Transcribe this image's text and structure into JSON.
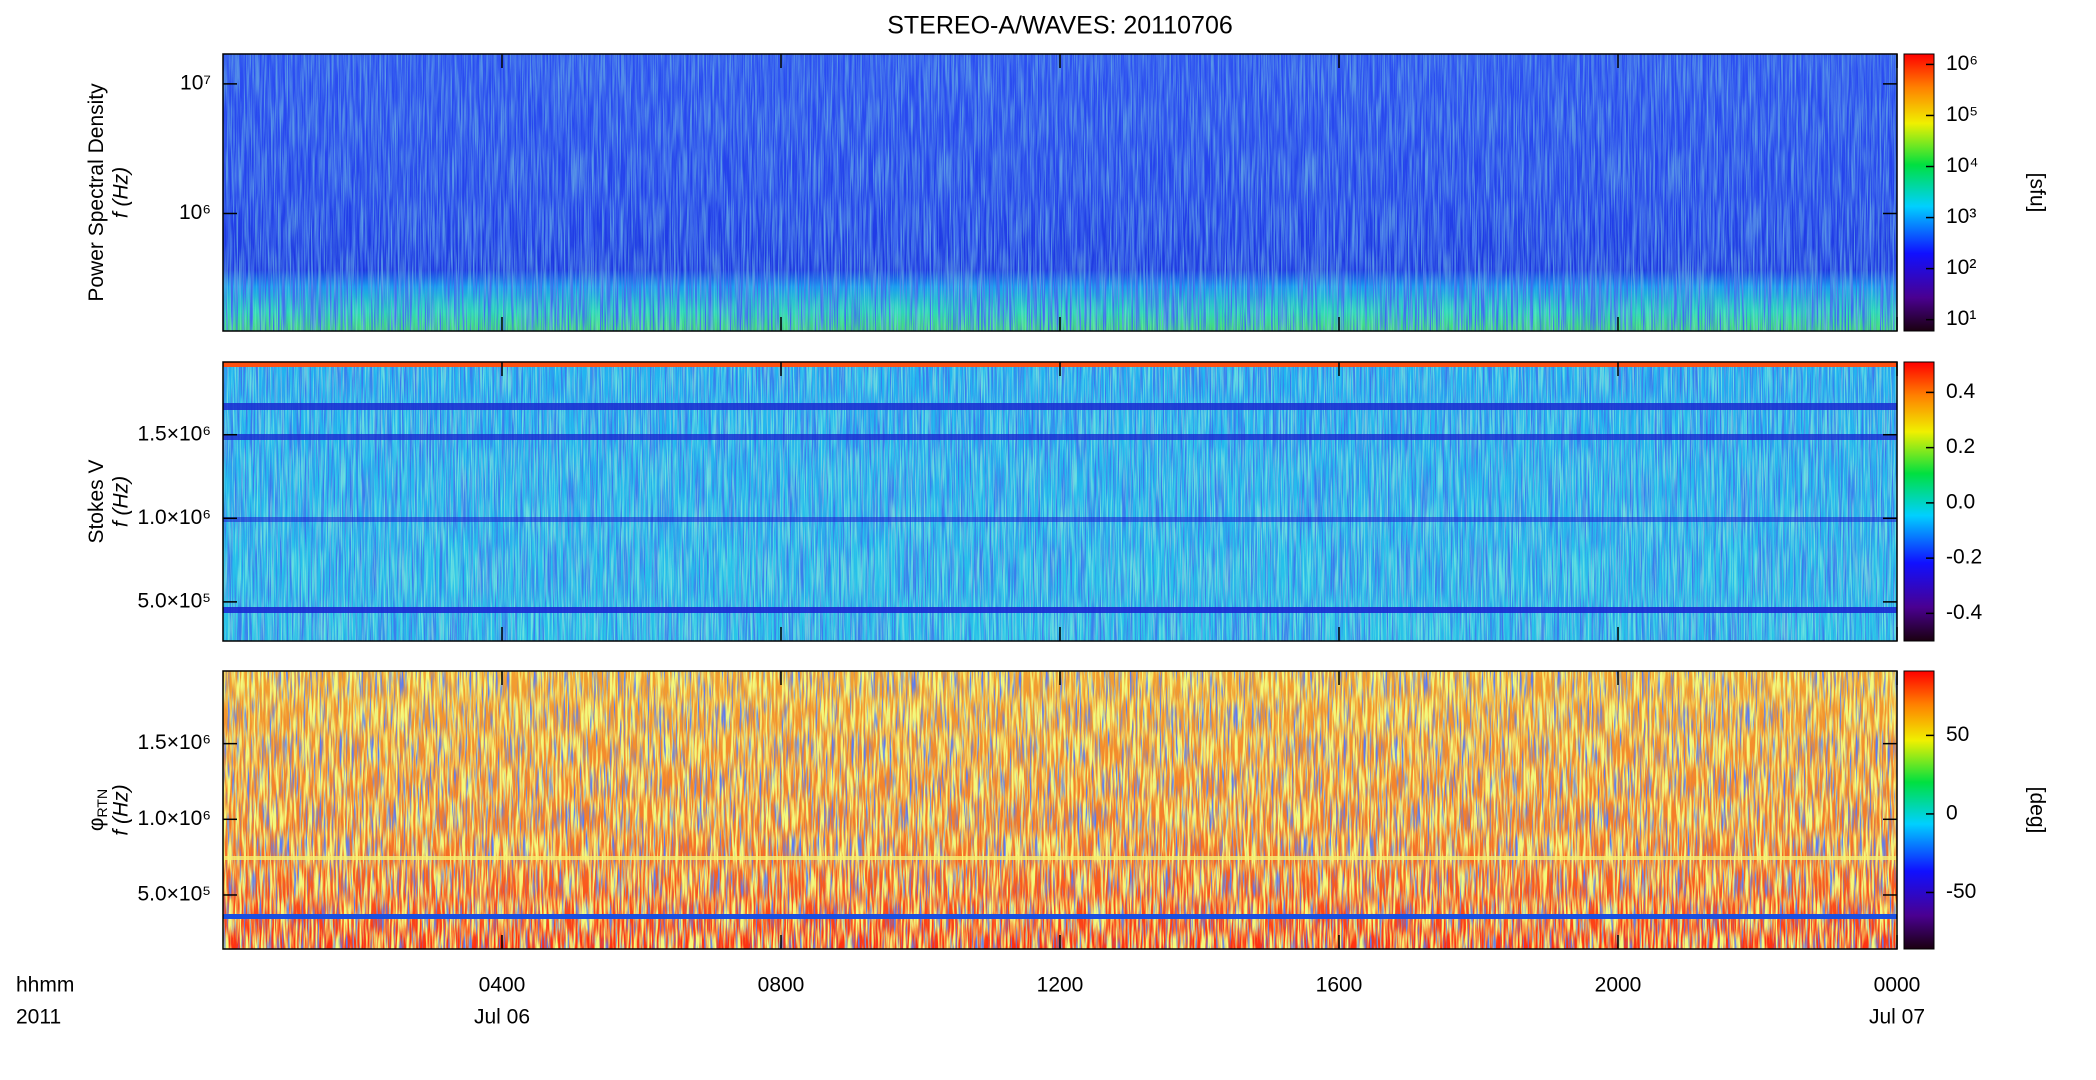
{
  "chart_data": [
    {
      "type": "heatmap",
      "title": "STEREO-A/WAVES: 20110706",
      "ylabel": "Power Spectral Density",
      "ylabel2": "f (Hz)",
      "yscale": "log",
      "ylim": [
        124000,
        17000000
      ],
      "yticks": [
        {
          "value": 1000000,
          "label": "10⁶"
        },
        {
          "value": 10000000,
          "label": "10⁷"
        }
      ],
      "colorbar": {
        "label": "[sfu]",
        "scale": "log",
        "lim": [
          6,
          1600000
        ],
        "ticks": [
          {
            "value": 10,
            "label": "10¹"
          },
          {
            "value": 100,
            "label": "10²"
          },
          {
            "value": 1000,
            "label": "10³"
          },
          {
            "value": 10000,
            "label": "10⁴"
          },
          {
            "value": 100000,
            "label": "10⁵"
          },
          {
            "value": 1000000,
            "label": "10⁶"
          }
        ]
      }
    },
    {
      "type": "heatmap",
      "ylabel": "Stokes V",
      "ylabel2": "f (Hz)",
      "yscale": "linear",
      "ylim": [
        266000,
        1935000
      ],
      "yticks": [
        {
          "value": 500000,
          "label": "5.0×10⁵"
        },
        {
          "value": 1000000,
          "label": "1.0×10⁶"
        },
        {
          "value": 1500000,
          "label": "1.5×10⁶"
        }
      ],
      "colorbar": {
        "scale": "linear",
        "lim": [
          -0.5,
          0.51
        ],
        "ticks": [
          -0.4,
          -0.2,
          {
            "value": 0,
            "label": "0.0"
          },
          0.2,
          0.4
        ]
      }
    },
    {
      "type": "heatmap",
      "ylabel": "φ",
      "ylabel_sub": "RTN",
      "ylabel2": "f (Hz)",
      "yscale": "linear",
      "ylim": [
        143000,
        1980000
      ],
      "yticks": [
        {
          "value": 500000,
          "label": "5.0×10⁵"
        },
        {
          "value": 1000000,
          "label": "1.0×10⁶"
        },
        {
          "value": 1500000,
          "label": "1.5×10⁶"
        }
      ],
      "colorbar": {
        "label": "[deg]",
        "scale": "linear",
        "lim": [
          -86,
          91
        ],
        "ticks": [
          -50,
          0,
          50
        ]
      },
      "xlabel": "hhmm",
      "xlabel2": "2011",
      "xlim": [
        0,
        24
      ],
      "xticks": [
        {
          "value": 4,
          "label": "0400"
        },
        {
          "value": 8,
          "label": "0800"
        },
        {
          "value": 12,
          "label": "1200"
        },
        {
          "value": 16,
          "label": "1600"
        },
        {
          "value": 20,
          "label": "2000"
        },
        {
          "value": 24,
          "label": "0000"
        }
      ],
      "xtick_dates": [
        "Jul 06",
        null,
        null,
        null,
        null,
        "Jul 07"
      ]
    }
  ]
}
